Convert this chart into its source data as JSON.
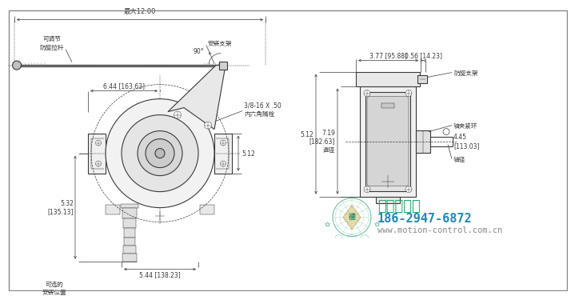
{
  "bg_color": "#ffffff",
  "line_color": "#3a3a3a",
  "dim_color": "#3a3a3a",
  "text_color": "#3a3a3a",
  "company_color": "#1daa6e",
  "phone_color": "#2288bb",
  "web_color": "#888888",
  "labels": {
    "max_width": "最大12.00",
    "adj_bar": "可调节\n防旋拉杆",
    "mount_bracket": "安装支架",
    "bolt_label": "3/8-16 X .50\n内六角贓栓",
    "dim_644": "6.44 [163.63]",
    "dim_512": "5.12",
    "dim_532": "5.32\n[135.13]",
    "dim_544": "5.44 [138.23]",
    "opt_mount": "可选的\n安装位置",
    "angle_90": "90°",
    "dim_right_377": "3.77 [95.88]",
    "dim_right_056": "0.56 [14.23]",
    "anti_bracket": "防旋支架",
    "shaft_clamp": "轴夹紧环",
    "dim_445": "4.45\n[113.03]",
    "dim_719": "7.19\n[182.63]\n直径",
    "shaft_dia": "轴径",
    "company_name": "西安德伍拓",
    "phone": "186-2947-6872",
    "website": "www.motion-control.com.cn"
  }
}
